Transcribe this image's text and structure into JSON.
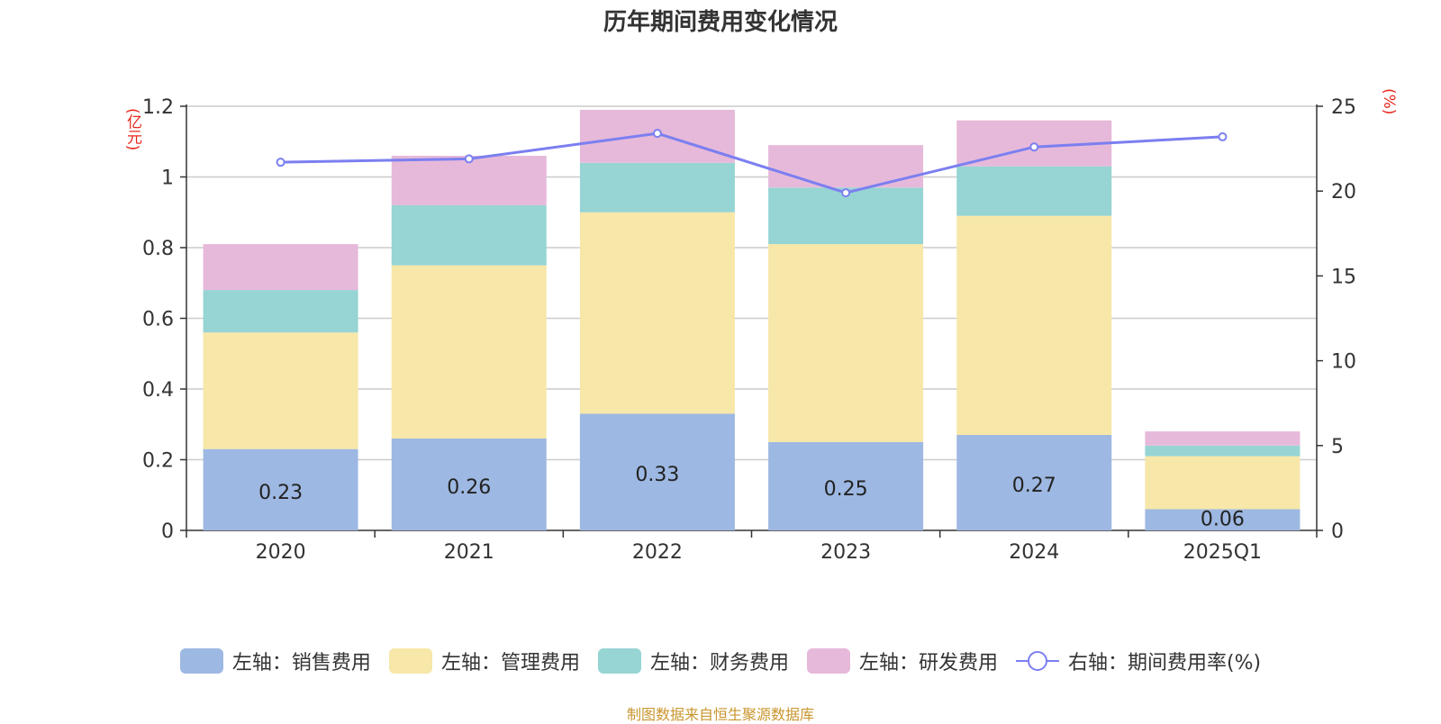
{
  "title": "历年期间费用变化情况",
  "unit_left": "(亿元)",
  "unit_right": "(%)",
  "source": "制图数据来自恒生聚源数据库",
  "colors": {
    "sales": "#9db8e2",
    "mgmt": "#f7e7a8",
    "finance": "#97d4d4",
    "rd": "#e6b9da",
    "rate": "#7b7ff0",
    "unit": "#e8271b",
    "source": "#c9962e"
  },
  "chart_data": {
    "type": "bar",
    "stacked": true,
    "categories": [
      "2020",
      "2021",
      "2022",
      "2023",
      "2024",
      "2025Q1"
    ],
    "series": [
      {
        "name": "左轴：销售费用",
        "key": "sales",
        "axis": "left",
        "values": [
          0.23,
          0.26,
          0.33,
          0.25,
          0.27,
          0.06
        ]
      },
      {
        "name": "左轴：管理费用",
        "key": "mgmt",
        "axis": "left",
        "values": [
          0.33,
          0.49,
          0.57,
          0.56,
          0.62,
          0.15
        ]
      },
      {
        "name": "左轴：财务费用",
        "key": "finance",
        "axis": "left",
        "values": [
          0.12,
          0.17,
          0.14,
          0.16,
          0.14,
          0.03
        ]
      },
      {
        "name": "左轴：研发费用",
        "key": "rd",
        "axis": "left",
        "values": [
          0.13,
          0.14,
          0.15,
          0.12,
          0.13,
          0.04
        ]
      },
      {
        "name": "右轴：期间费用率(%)",
        "key": "rate",
        "axis": "right",
        "type": "line",
        "values": [
          21.7,
          21.9,
          23.4,
          19.9,
          22.6,
          23.2
        ]
      }
    ],
    "data_labels_series": "sales",
    "y_left": {
      "min": 0,
      "max": 1.2,
      "ticks": [
        "0",
        "0.2",
        "0.4",
        "0.6",
        "0.8",
        "1",
        "1.2"
      ]
    },
    "y_right": {
      "min": 0,
      "max": 25,
      "ticks": [
        "0",
        "5",
        "10",
        "15",
        "20",
        "25"
      ]
    },
    "grid": true,
    "legend_position": "bottom"
  }
}
